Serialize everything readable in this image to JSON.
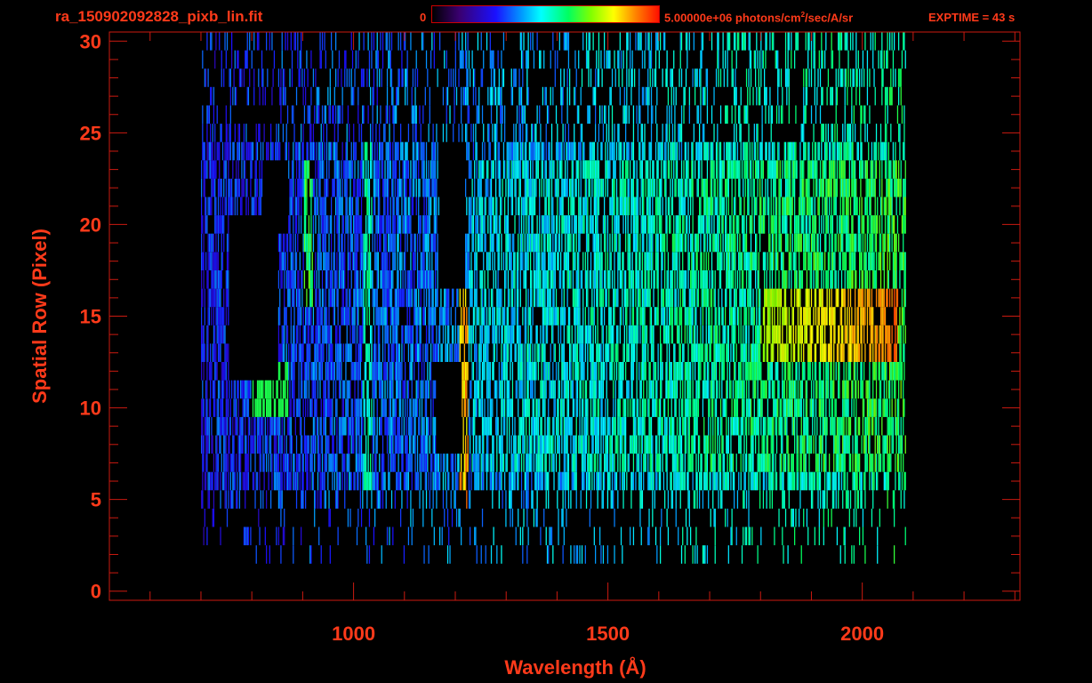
{
  "header": {
    "file_name": "ra_150902092828_pixb_lin.fit",
    "colorbar_min": "0",
    "colorbar_max_value": "5.00000e+06 photons/cm",
    "colorbar_max_exp": "2",
    "colorbar_max_rest": "/sec/A/sr",
    "exptime": "EXPTIME = 43 s"
  },
  "colors": {
    "axis": "#ff3a1a",
    "frame": "#cc1a10",
    "background": "#000000"
  },
  "chart_data": {
    "type": "heatmap",
    "title": "",
    "xlabel": "Wavelength (Å)",
    "ylabel": "Spatial Row (Pixel)",
    "xlim": [
      520,
      2310
    ],
    "ylim": [
      -0.5,
      30.5
    ],
    "x_ticks": [
      1000,
      1500,
      2000
    ],
    "y_ticks": [
      0,
      5,
      10,
      15,
      20,
      25,
      30
    ],
    "colorbar": {
      "min": 0,
      "max": 5000000,
      "units": "photons/cm^2/sec/A/sr",
      "colormap": "rainbow"
    },
    "signal_x_range": [
      700,
      2085
    ],
    "rows_with_signal": [
      2,
      30
    ],
    "bright_lines": [
      {
        "wavelength": 1216,
        "rows": [
          5,
          16
        ],
        "intensity": 0.92
      },
      {
        "wavelength": 1026,
        "rows": [
          6,
          24
        ],
        "intensity": 0.6
      },
      {
        "wavelength": 910,
        "rows": [
          16,
          23
        ],
        "intensity": 0.68
      }
    ],
    "bright_band": {
      "rows": [
        13,
        16
      ],
      "wavelength_range": [
        1800,
        2070
      ],
      "intensity": 0.9
    },
    "gaps": [
      {
        "wavelength_range": [
          1168,
          1218
        ],
        "rows": [
          17,
          24
        ]
      },
      {
        "wavelength_range": [
          1162,
          1212
        ],
        "rows": [
          8,
          12
        ]
      },
      {
        "wavelength_range": [
          755,
          850
        ],
        "rows": [
          12,
          20
        ]
      },
      {
        "wavelength_range": [
          820,
          870
        ],
        "rows": [
          20,
          23
        ]
      }
    ],
    "edge_column": {
      "wavelength": 2062,
      "intensity": 0.95
    }
  }
}
